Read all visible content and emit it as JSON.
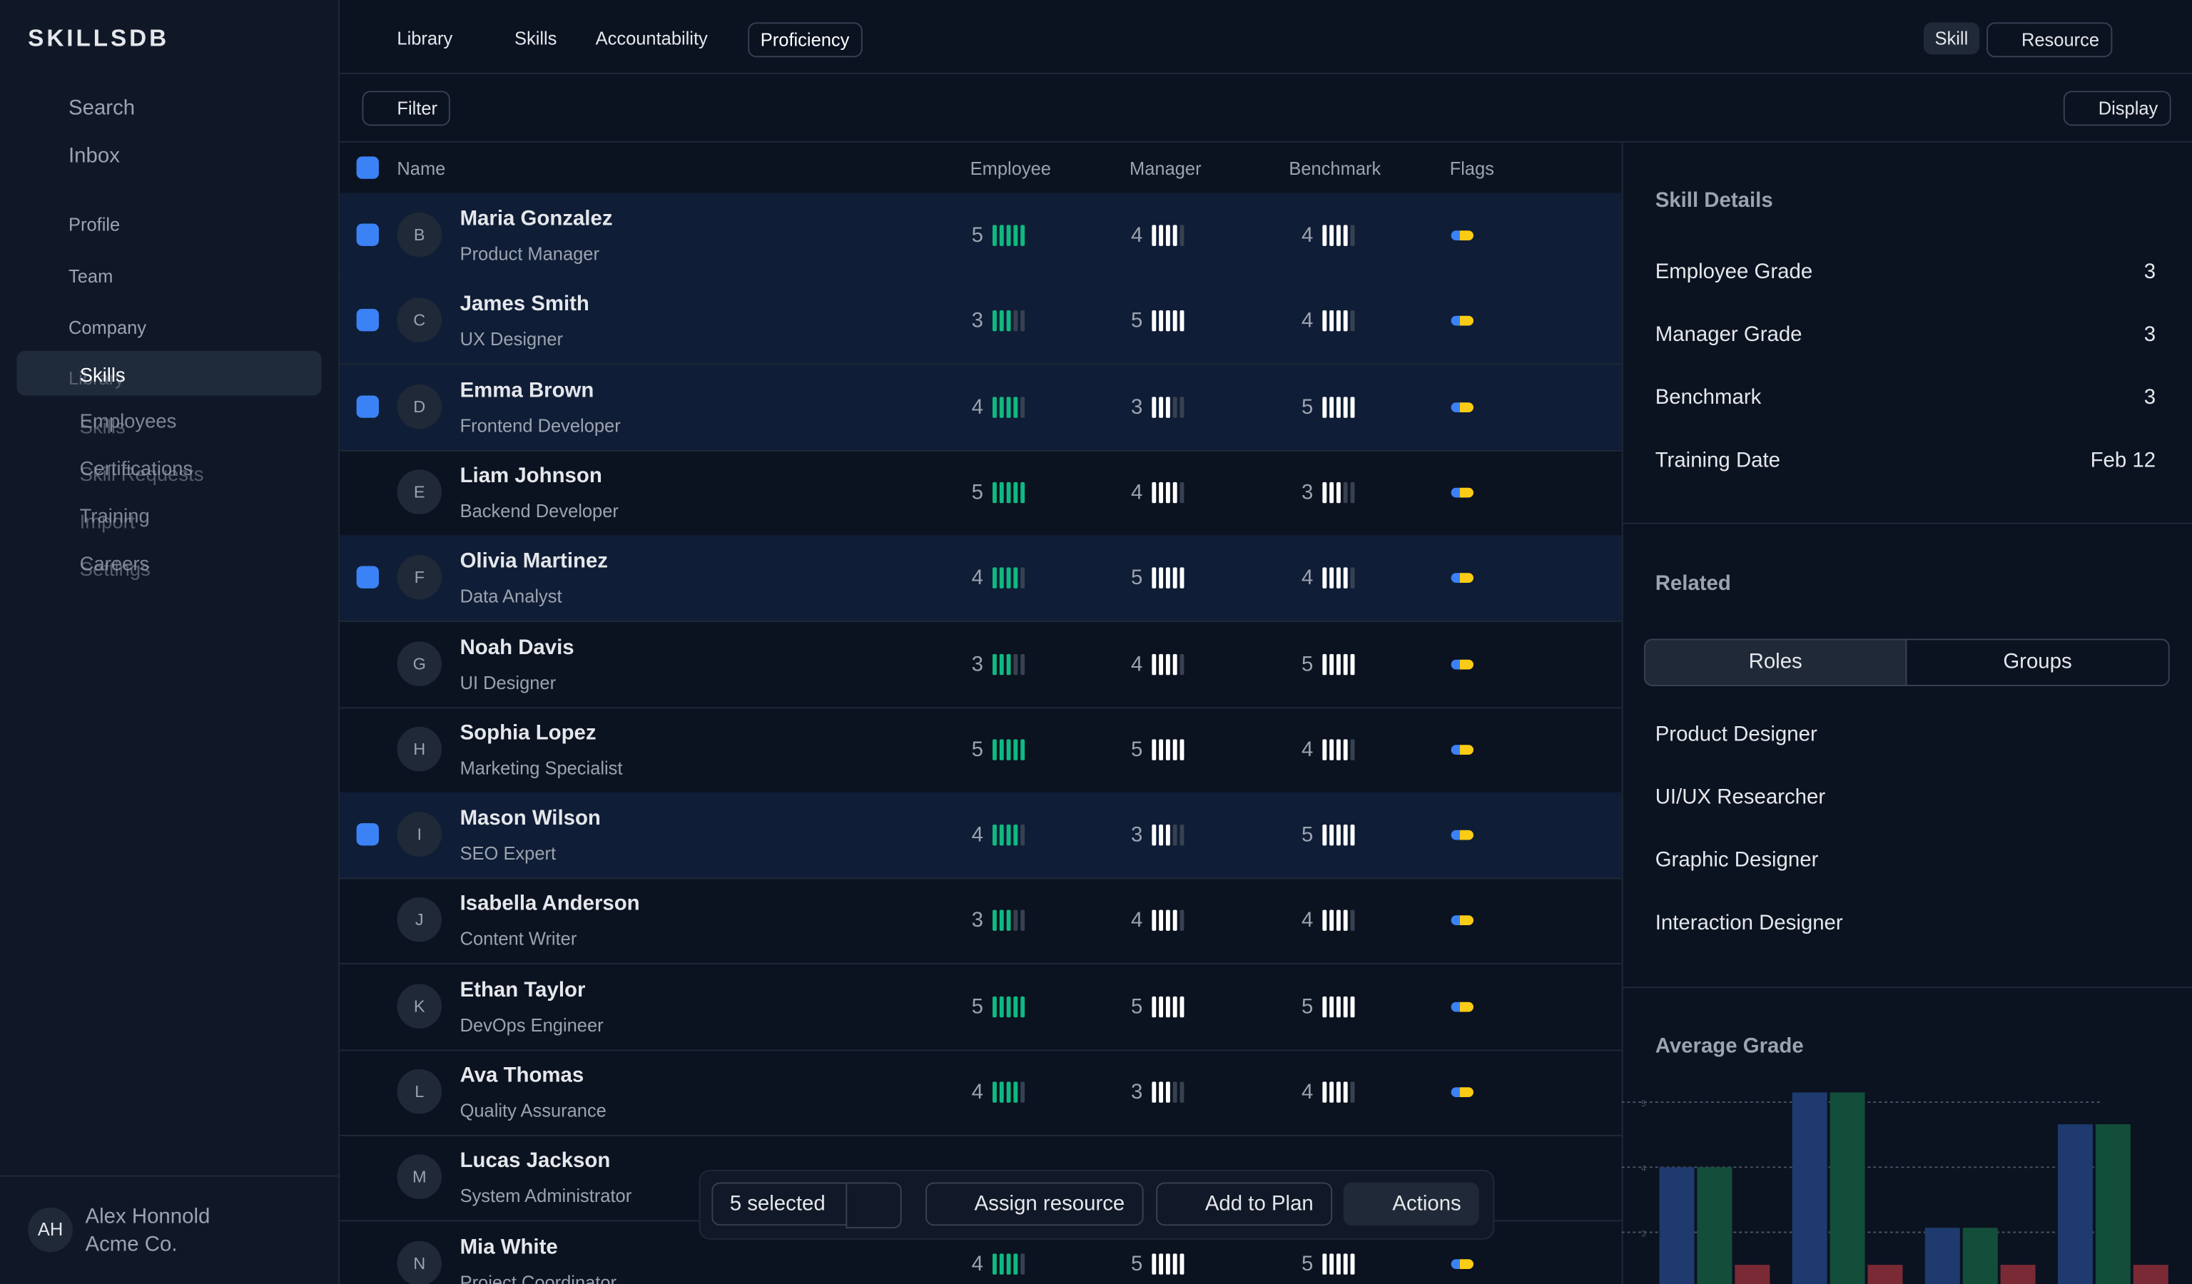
{
  "sidebar": {
    "brand": "SKILLSDB",
    "nav": [
      "Search",
      "Inbox"
    ],
    "sections": [
      "Profile",
      "Team",
      "Company"
    ],
    "active": "Skills",
    "active_ghost": "Library",
    "items": [
      "Employees",
      "Certifications",
      "Training",
      "Careers"
    ],
    "items_ghost": [
      "Skills",
      "Skill Requests",
      "Import",
      "Settings"
    ],
    "user": {
      "initials": "AH",
      "name": "Alex Honnold",
      "org": "Acme Co."
    }
  },
  "breadcrumb": [
    "Library",
    "Skills",
    "Accountability"
  ],
  "dropdown": "Proficiency",
  "top_actions": [
    "Skill",
    "Resource"
  ],
  "toolbar": {
    "filter": "Filter",
    "display": "Display"
  },
  "table": {
    "columns": [
      "Name",
      "Employee",
      "Manager",
      "Benchmark",
      "Flags"
    ],
    "rows": [
      {
        "initial": "B",
        "name": "Maria Gonzalez",
        "role": "Product Manager",
        "employee": 5,
        "manager": 4,
        "benchmark": 4,
        "selected": true
      },
      {
        "initial": "C",
        "name": "James Smith",
        "role": "UX Designer",
        "employee": 3,
        "manager": 5,
        "benchmark": 4,
        "selected": true
      },
      {
        "initial": "D",
        "name": "Emma Brown",
        "role": "Frontend Developer",
        "employee": 4,
        "manager": 3,
        "benchmark": 5,
        "selected": true
      },
      {
        "initial": "E",
        "name": "Liam Johnson",
        "role": "Backend Developer",
        "employee": 5,
        "manager": 4,
        "benchmark": 3,
        "selected": false
      },
      {
        "initial": "F",
        "name": "Olivia Martinez",
        "role": "Data Analyst",
        "employee": 4,
        "manager": 5,
        "benchmark": 4,
        "selected": true
      },
      {
        "initial": "G",
        "name": "Noah Davis",
        "role": "UI Designer",
        "employee": 3,
        "manager": 4,
        "benchmark": 5,
        "selected": false
      },
      {
        "initial": "H",
        "name": "Sophia Lopez",
        "role": "Marketing Specialist",
        "employee": 5,
        "manager": 5,
        "benchmark": 4,
        "selected": false
      },
      {
        "initial": "I",
        "name": "Mason Wilson",
        "role": "SEO Expert",
        "employee": 4,
        "manager": 3,
        "benchmark": 5,
        "selected": true
      },
      {
        "initial": "J",
        "name": "Isabella Anderson",
        "role": "Content Writer",
        "employee": 3,
        "manager": 4,
        "benchmark": 4,
        "selected": false
      },
      {
        "initial": "K",
        "name": "Ethan Taylor",
        "role": "DevOps Engineer",
        "employee": 5,
        "manager": 5,
        "benchmark": 5,
        "selected": false
      },
      {
        "initial": "L",
        "name": "Ava Thomas",
        "role": "Quality Assurance",
        "employee": 4,
        "manager": 3,
        "benchmark": 4,
        "selected": false
      },
      {
        "initial": "M",
        "name": "Lucas Jackson",
        "role": "System Administrator",
        "employee": null,
        "manager": null,
        "benchmark": null,
        "selected": false
      },
      {
        "initial": "N",
        "name": "Mia White",
        "role": "Project Coordinator",
        "employee": 4,
        "manager": 5,
        "benchmark": 5,
        "selected": false
      }
    ]
  },
  "details": {
    "title": "Skill Details",
    "rows": [
      {
        "label": "Employee Grade",
        "value": 3
      },
      {
        "label": "Manager Grade",
        "value": 3
      },
      {
        "label": "Benchmark",
        "value": 3
      },
      {
        "label": "Training Date",
        "value": "Feb 12"
      }
    ]
  },
  "related": {
    "title": "Related",
    "tabs": [
      "Roles",
      "Groups"
    ],
    "items": [
      "Product Designer",
      "UI/UX Researcher",
      "Graphic Designer",
      "Interaction Designer"
    ]
  },
  "average_grade": {
    "title": "Average Grade",
    "ylim": [
      2.2,
      5.4
    ],
    "yticks": [
      5,
      4,
      3
    ],
    "series": [
      {
        "color": "#1e3a6e",
        "values": [
          4,
          5.15,
          3.07,
          4.66
        ]
      },
      {
        "color": "#134e3a",
        "values": [
          4,
          5.15,
          3.07,
          4.66
        ]
      },
      {
        "color": "#7a2a35",
        "values": [
          2.5,
          2.5,
          2.5,
          2.5
        ]
      }
    ]
  },
  "action_bar": {
    "selected": "5 selected",
    "buttons": [
      "Assign resource",
      "Add to Plan",
      "Actions"
    ]
  }
}
